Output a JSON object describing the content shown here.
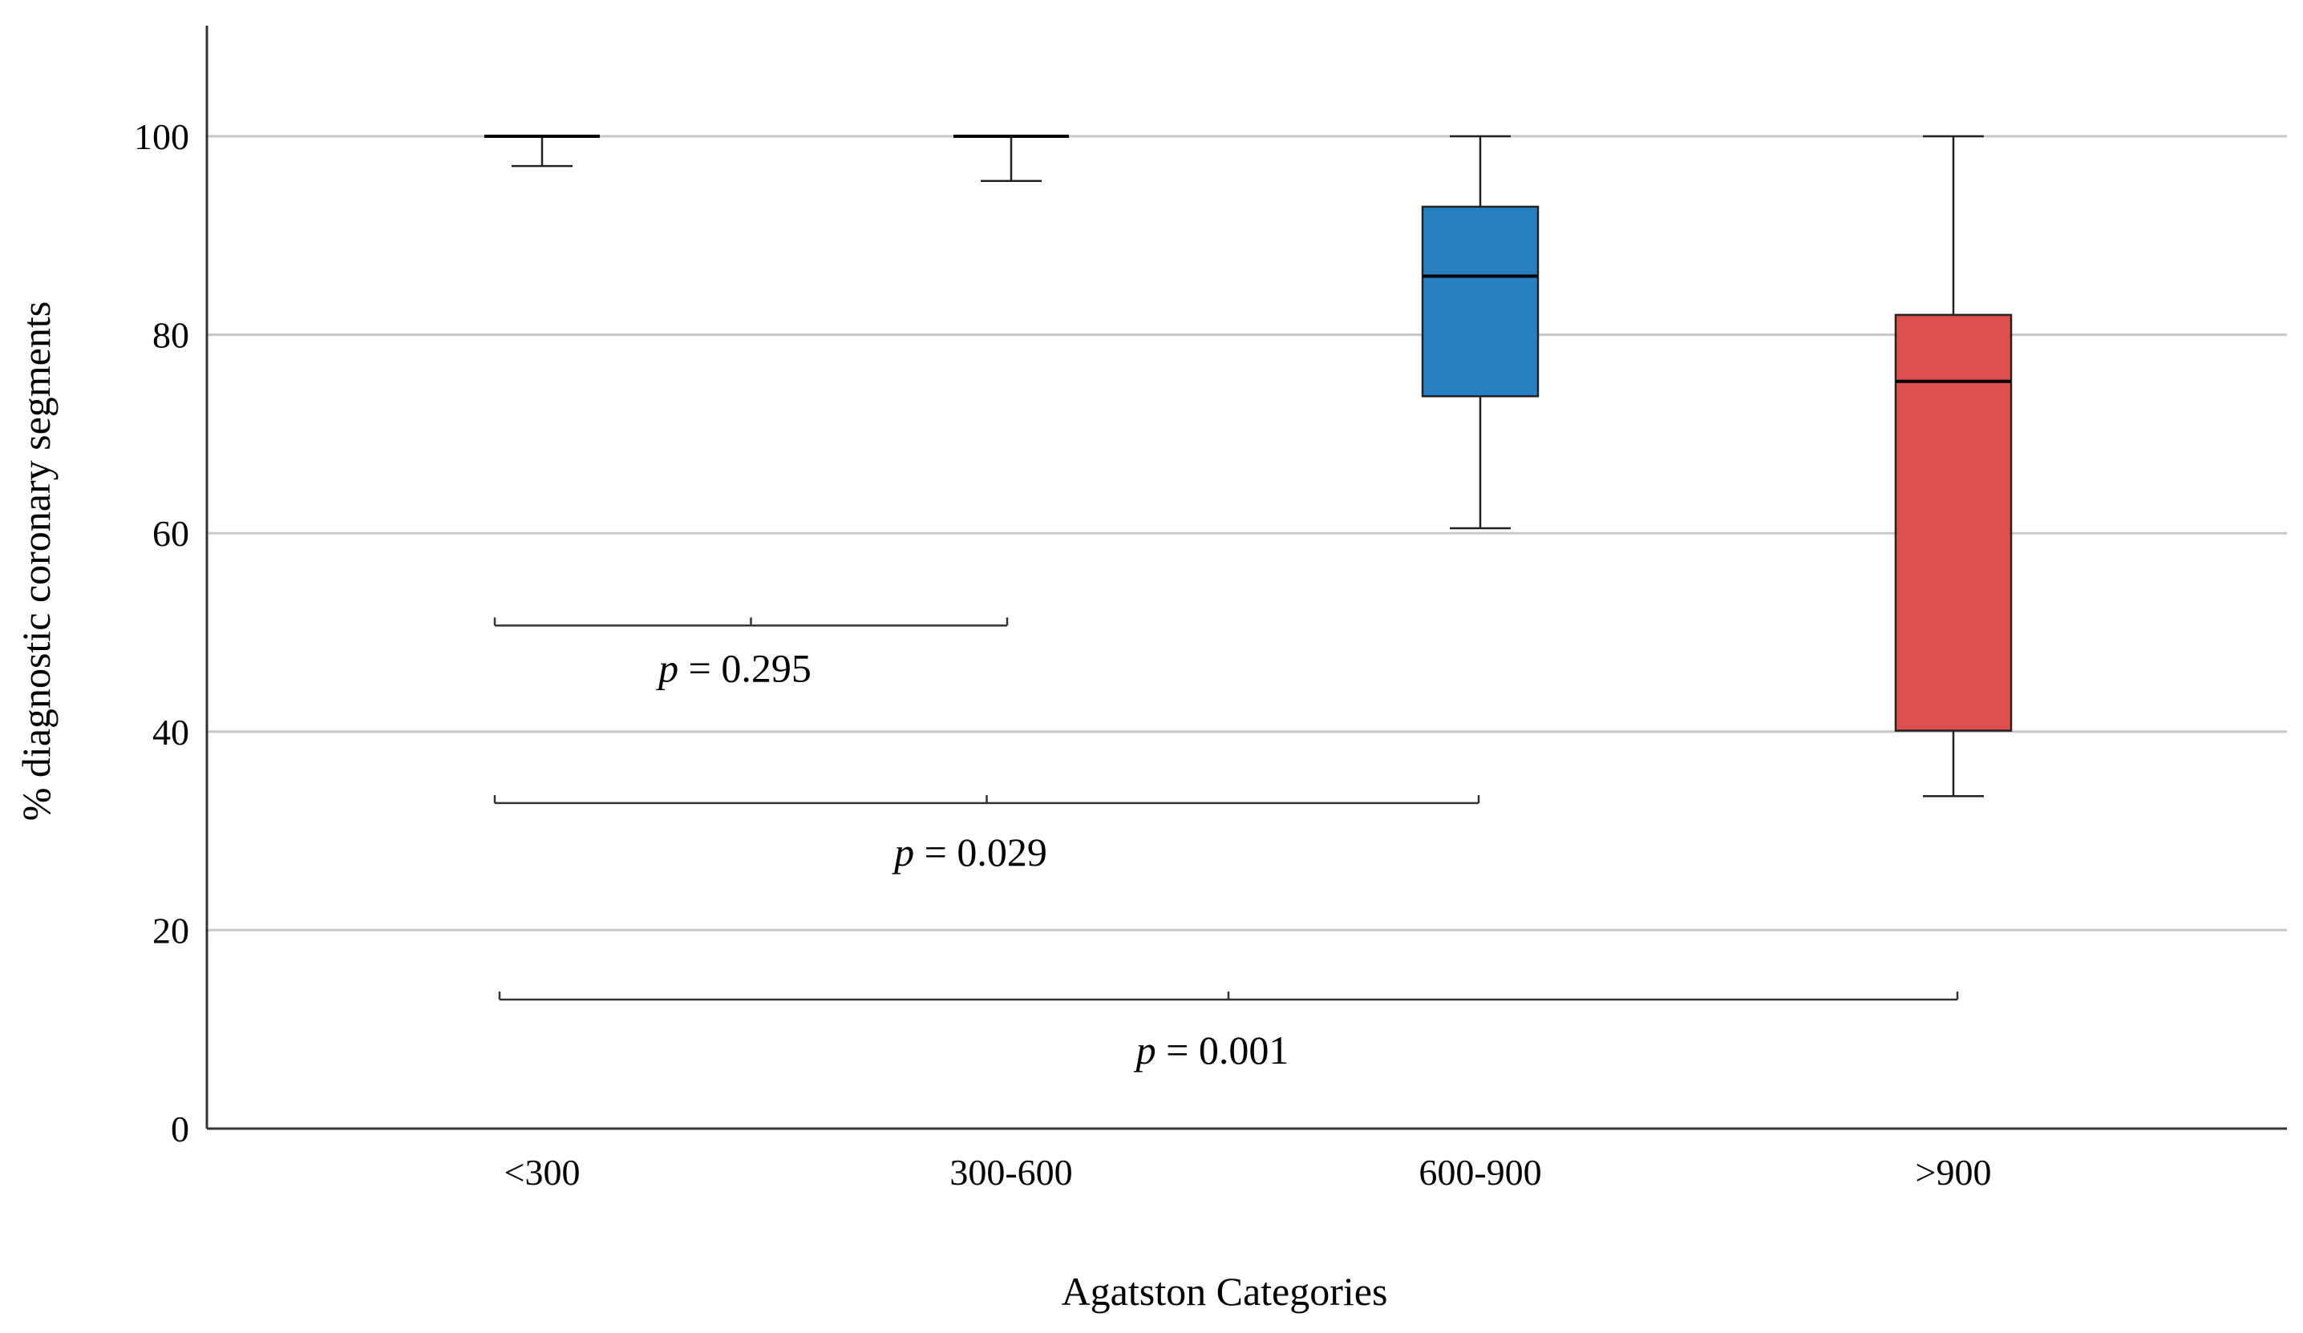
{
  "chart_data": {
    "type": "box",
    "title": "",
    "xlabel": "Agatston Categories",
    "ylabel": "% diagnostic coronary segments",
    "ylim": [
      0,
      110
    ],
    "yticks": [
      0,
      20,
      40,
      60,
      80,
      100
    ],
    "grid": "horizontal",
    "categories": [
      "<300",
      "300-600",
      "600-900",
      ">900"
    ],
    "boxes": [
      {
        "category": "<300",
        "min": 97.0,
        "q1": 100.0,
        "median": 100.0,
        "q3": 100.0,
        "max": 100.0,
        "color": "#ffffff"
      },
      {
        "category": "300-600",
        "min": 95.5,
        "q1": 100.0,
        "median": 100.0,
        "q3": 100.0,
        "max": 100.0,
        "color": "#ffffff"
      },
      {
        "category": "600-900",
        "min": 60.5,
        "q1": 73.8,
        "median": 85.9,
        "q3": 92.9,
        "max": 100.0,
        "color": "#2680c2"
      },
      {
        "category": ">900",
        "min": 33.5,
        "q1": 40.1,
        "median": 75.3,
        "q3": 82.0,
        "max": 100.0,
        "color": "#dc4f4e"
      }
    ],
    "comparisons": [
      {
        "from": "<300",
        "to": "300-600",
        "y": 50.7,
        "label_prefix": "p",
        "label_rest": " = 0.295"
      },
      {
        "from": "<300",
        "to": "600-900",
        "y": 32.8,
        "label_prefix": "p",
        "label_rest": " = 0.029"
      },
      {
        "from": "<300",
        "to": ">900",
        "y": 13.0,
        "label_prefix": "p",
        "label_rest": " = 0.001"
      }
    ]
  },
  "colors": {
    "axis": "#333333",
    "grid": "#c8c8c8",
    "whisker": "#222222"
  }
}
